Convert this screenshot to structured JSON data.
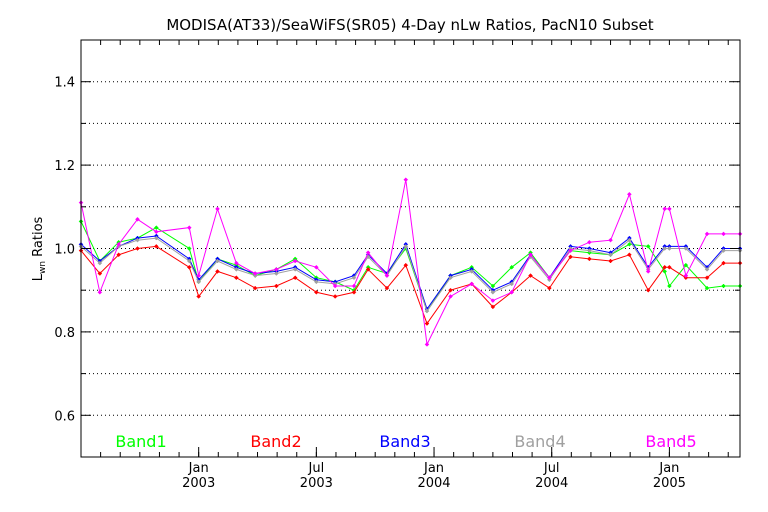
{
  "chart_data": {
    "type": "line",
    "title": "MODISA(AT33)/SeaWiFS(SR05) 4-Day nLw Ratios, PacN10 Subset",
    "xlabel": "",
    "ylabel": "Lwn Ratios",
    "ylabel_main": "L",
    "ylabel_sub": "wn",
    "ylabel_rest": " Ratios",
    "xlim": [
      2002.5,
      2005.3
    ],
    "ylim": [
      0.5,
      1.5
    ],
    "grid": true,
    "legend_position": "bottom",
    "x_ticks": [
      {
        "value": 2003.0,
        "month": "Jan",
        "year": "2003"
      },
      {
        "value": 2003.5,
        "month": "Jul",
        "year": "2003"
      },
      {
        "value": 2004.0,
        "month": "Jan",
        "year": "2004"
      },
      {
        "value": 2004.5,
        "month": "Jul",
        "year": "2004"
      },
      {
        "value": 2005.0,
        "month": "Jan",
        "year": "2005"
      }
    ],
    "y_ticks": [
      {
        "value": 0.6,
        "label": "0.6"
      },
      {
        "value": 0.8,
        "label": "0.8"
      },
      {
        "value": 1.0,
        "label": "1.0"
      },
      {
        "value": 1.2,
        "label": "1.2"
      },
      {
        "value": 1.4,
        "label": "1.4"
      }
    ],
    "x": [
      2002.5,
      2002.58,
      2002.66,
      2002.74,
      2002.82,
      2002.96,
      2003.0,
      2003.08,
      2003.16,
      2003.24,
      2003.33,
      2003.41,
      2003.5,
      2003.58,
      2003.66,
      2003.72,
      2003.8,
      2003.88,
      2003.97,
      2004.07,
      2004.16,
      2004.25,
      2004.33,
      2004.41,
      2004.49,
      2004.58,
      2004.66,
      2004.75,
      2004.83,
      2004.91,
      2004.98,
      2005.0,
      2005.07,
      2005.16,
      2005.23,
      2005.3
    ],
    "series": [
      {
        "name": "Band1",
        "color": "#00ff00",
        "values": [
          1.065,
          0.97,
          1.015,
          1.025,
          1.05,
          1.0,
          0.92,
          0.975,
          0.96,
          0.935,
          0.95,
          0.975,
          0.93,
          0.92,
          0.9,
          0.955,
          0.94,
          1.0,
          0.85,
          0.935,
          0.955,
          0.91,
          0.955,
          0.99,
          0.93,
          0.995,
          0.99,
          0.985,
          1.01,
          1.005,
          0.945,
          0.91,
          0.96,
          0.905,
          0.91,
          0.91
        ]
      },
      {
        "name": "Band2",
        "color": "#ff0000",
        "values": [
          0.995,
          0.94,
          0.985,
          1.0,
          1.005,
          0.955,
          0.885,
          0.945,
          0.93,
          0.905,
          0.91,
          0.93,
          0.895,
          0.885,
          0.895,
          0.95,
          0.905,
          0.96,
          0.82,
          0.9,
          0.915,
          0.86,
          0.895,
          0.935,
          0.905,
          0.98,
          0.975,
          0.97,
          0.985,
          0.9,
          0.955,
          0.955,
          0.93,
          0.93,
          0.965,
          0.965
        ]
      },
      {
        "name": "Band3",
        "color": "#0000ff",
        "values": [
          1.01,
          0.97,
          1.005,
          1.025,
          1.03,
          0.975,
          0.925,
          0.975,
          0.955,
          0.94,
          0.945,
          0.955,
          0.925,
          0.92,
          0.935,
          0.985,
          0.94,
          1.01,
          0.855,
          0.935,
          0.95,
          0.9,
          0.92,
          0.985,
          0.93,
          1.005,
          1.0,
          0.99,
          1.025,
          0.955,
          1.005,
          1.005,
          1.005,
          0.955,
          1.0,
          1.0
        ]
      },
      {
        "name": "Band4",
        "color": "#a0a0a0",
        "values": [
          1.005,
          0.965,
          1.005,
          1.02,
          1.025,
          0.97,
          0.92,
          0.97,
          0.95,
          0.935,
          0.94,
          0.95,
          0.92,
          0.915,
          0.93,
          0.98,
          0.935,
          1.005,
          0.85,
          0.93,
          0.945,
          0.895,
          0.915,
          0.98,
          0.925,
          1.0,
          0.995,
          0.985,
          1.02,
          0.95,
          1.0,
          1.0,
          1.0,
          0.95,
          0.995,
          0.995
        ]
      },
      {
        "name": "Band5",
        "color": "#ff00ff",
        "values": [
          1.11,
          0.895,
          1.01,
          1.07,
          1.04,
          1.05,
          0.935,
          1.095,
          0.965,
          0.94,
          0.95,
          0.97,
          0.955,
          0.91,
          0.91,
          0.99,
          0.935,
          1.165,
          0.77,
          0.885,
          0.915,
          0.875,
          0.895,
          0.985,
          0.93,
          0.995,
          1.015,
          1.02,
          1.13,
          0.945,
          1.095,
          1.095,
          0.935,
          1.035,
          1.035,
          1.035
        ]
      }
    ]
  }
}
